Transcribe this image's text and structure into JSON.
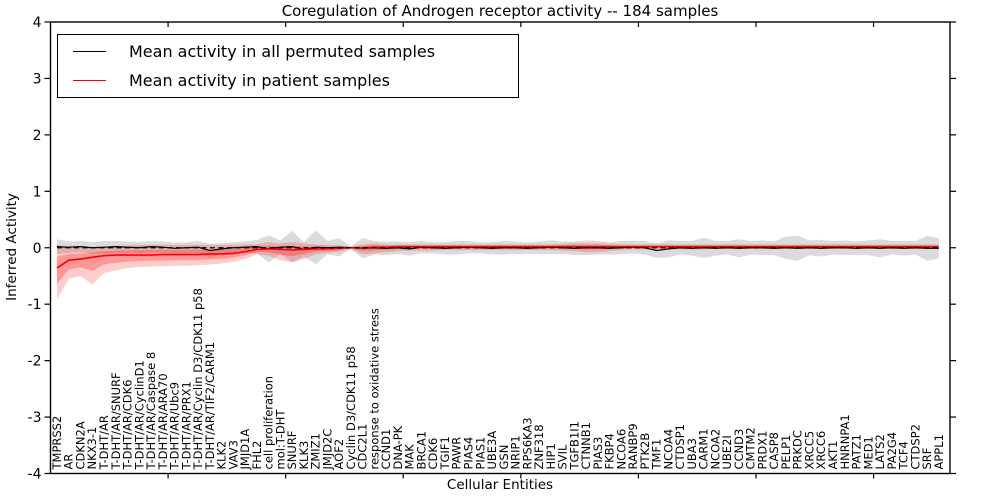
{
  "chart_data": {
    "type": "line",
    "title": "Coregulation of Androgen receptor activity -- 184 samples",
    "xlabel": "Cellular Entities",
    "ylabel": "Inferred Activity",
    "ylim": [
      -4,
      4
    ],
    "yticks": [
      "4",
      "3",
      "2",
      "1",
      "0",
      "-1",
      "-2",
      "-3",
      "-4"
    ],
    "grid": false,
    "legend_position": "upper left",
    "categories": [
      "TMPRSS2",
      "AR",
      "CDKN2A",
      "NKX3-1",
      "T-DHT/AR",
      "T-DHT/AR/SNURF",
      "T-DHT/AR/CDK6",
      "T-DHT/AR/CyclinD1",
      "T-DHT/AR/Caspase 8",
      "T-DHT/AR/ARA70",
      "T-DHT/AR/Ubc9",
      "T-DHT/AR/PRX1",
      "T-DHT/AR/Cyclin D3/CDK11 p58",
      "T-DHT/AR/TIF2/CARM1",
      "KLK2",
      "VAV3",
      "JMJD1A",
      "FHL2",
      "cell proliferation",
      "mol:T-DHT",
      "SNURF",
      "KLK3",
      "ZMIZ1",
      "JMJD2C",
      "AOF2",
      "Cyclin D3/CDK11 p58",
      "CDC2L1",
      "response to oxidative stress",
      "CCND1",
      "DNA-PK",
      "MAK",
      "BRCA1",
      "CDK6",
      "TGIF1",
      "PAWR",
      "PIAS4",
      "PIAS1",
      "UBE3A",
      "GSN",
      "NRIP1",
      "RPS6KA3",
      "ZNF318",
      "HIP1",
      "SVIL",
      "TGFB1I1",
      "CTNNB1",
      "PIAS3",
      "FKBP4",
      "NCOA6",
      "RANBP9",
      "PTK2B",
      "TMF1",
      "NCOA4",
      "CTDSP1",
      "UBA3",
      "CARM1",
      "NCOA2",
      "UBE2I",
      "CCND3",
      "CMTM2",
      "PRDX1",
      "CASP8",
      "PELP1",
      "PRKDC",
      "XRCC5",
      "XRCC6",
      "AKT1",
      "HNRNPA1",
      "PATZ1",
      "MED1",
      "LATS2",
      "PA2G4",
      "TCF4",
      "CTDSP2",
      "SRF",
      "APPL1"
    ],
    "series": [
      {
        "name": "Mean activity in all permuted samples",
        "color": "#000000",
        "band_color": "#000000",
        "band_opacity": 0.14,
        "values": [
          0.02,
          0.01,
          0.02,
          0.0,
          0.01,
          0.02,
          0.01,
          0.0,
          0.02,
          0.01,
          -0.01,
          0.0,
          0.01,
          -0.05,
          -0.02,
          0.0,
          0.01,
          0.02,
          -0.02,
          0.01,
          0.02,
          -0.03,
          0.01,
          0.0,
          0.01,
          0.0,
          -0.01,
          0.0,
          -0.01,
          0.0,
          -0.02,
          0.01,
          0.0,
          -0.01,
          0.0,
          0.01,
          0.0,
          -0.01,
          0.0,
          0.0,
          -0.01,
          0.0,
          0.01,
          0.0,
          -0.01,
          0.0,
          0.0,
          -0.01,
          0.0,
          0.01,
          0.0,
          -0.05,
          -0.02,
          0.0,
          -0.01,
          0.0,
          -0.01,
          0.0,
          -0.01,
          0.0,
          0.0,
          -0.01,
          0.0,
          -0.01,
          0.0,
          -0.01,
          0.0,
          0.0,
          -0.01,
          0.0,
          -0.01,
          0.0,
          -0.01,
          0.0,
          -0.01,
          -0.01
        ],
        "band_halfwidth": [
          0.13,
          0.1,
          0.1,
          0.1,
          0.11,
          0.1,
          0.1,
          0.1,
          0.1,
          0.1,
          0.1,
          0.1,
          0.11,
          0.12,
          0.1,
          0.1,
          0.1,
          0.12,
          0.24,
          0.12,
          0.28,
          0.13,
          0.3,
          0.12,
          0.16,
          0.02,
          0.18,
          0.12,
          0.12,
          0.11,
          0.12,
          0.11,
          0.1,
          0.11,
          0.12,
          0.11,
          0.1,
          0.11,
          0.12,
          0.11,
          0.1,
          0.11,
          0.12,
          0.11,
          0.12,
          0.13,
          0.12,
          0.11,
          0.12,
          0.11,
          0.12,
          0.13,
          0.15,
          0.12,
          0.13,
          0.18,
          0.13,
          0.12,
          0.16,
          0.12,
          0.13,
          0.12,
          0.2,
          0.22,
          0.13,
          0.15,
          0.12,
          0.13,
          0.12,
          0.13,
          0.16,
          0.12,
          0.13,
          0.12,
          0.22,
          0.18
        ]
      },
      {
        "name": "Mean activity in patient samples",
        "color": "#ff0000",
        "band_color": "#ff0000",
        "band_opacity": 0.2,
        "values": [
          -0.36,
          -0.22,
          -0.2,
          -0.17,
          -0.14,
          -0.13,
          -0.13,
          -0.13,
          -0.13,
          -0.12,
          -0.12,
          -0.12,
          -0.12,
          -0.11,
          -0.11,
          -0.1,
          -0.07,
          -0.03,
          -0.02,
          -0.03,
          -0.04,
          -0.03,
          -0.02,
          -0.02,
          -0.01,
          0.0,
          0.0,
          0.01,
          0.01,
          0.02,
          0.02,
          0.02,
          0.02,
          0.02,
          0.02,
          0.02,
          0.02,
          0.02,
          0.02,
          0.02,
          0.02,
          0.02,
          0.02,
          0.02,
          0.02,
          0.02,
          0.02,
          0.02,
          0.02,
          0.02,
          0.02,
          0.02,
          0.02,
          0.02,
          0.02,
          0.02,
          0.02,
          0.02,
          0.02,
          0.02,
          0.02,
          0.02,
          0.02,
          0.02,
          0.02,
          0.02,
          0.02,
          0.02,
          0.02,
          0.02,
          0.02,
          0.02,
          0.02,
          0.02,
          0.02,
          0.02
        ],
        "band_lo": [
          -0.92,
          -0.55,
          -0.5,
          -0.65,
          -0.45,
          -0.4,
          -0.36,
          -0.34,
          -0.33,
          -0.33,
          -0.32,
          -0.32,
          -0.31,
          -0.3,
          -0.28,
          -0.25,
          -0.2,
          -0.12,
          -0.14,
          -0.22,
          -0.26,
          -0.2,
          -0.12,
          -0.09,
          -0.07,
          -0.02,
          -0.12,
          -0.1,
          -0.08,
          -0.06,
          -0.05,
          -0.05,
          -0.05,
          -0.04,
          -0.04,
          -0.04,
          -0.04,
          -0.04,
          -0.04,
          -0.04,
          -0.04,
          -0.04,
          -0.04,
          -0.05,
          -0.06,
          -0.08,
          -0.08,
          -0.06,
          -0.04,
          -0.03,
          -0.03,
          -0.03,
          -0.03,
          -0.03,
          -0.03,
          -0.03,
          -0.02,
          -0.02,
          -0.02,
          -0.02,
          -0.02,
          -0.02,
          -0.02,
          -0.02,
          -0.02,
          -0.02,
          -0.02,
          -0.02,
          -0.02,
          -0.02,
          -0.02,
          -0.02,
          -0.02,
          -0.02,
          -0.02,
          -0.02
        ],
        "band_hi": [
          0.05,
          0.0,
          -0.01,
          0.01,
          0.02,
          0.03,
          0.04,
          0.05,
          0.05,
          0.05,
          0.05,
          0.05,
          0.05,
          0.05,
          0.05,
          0.05,
          0.06,
          0.06,
          0.1,
          0.08,
          0.1,
          0.08,
          0.06,
          0.05,
          0.04,
          0.02,
          0.06,
          0.08,
          0.06,
          0.06,
          0.06,
          0.06,
          0.06,
          0.06,
          0.06,
          0.06,
          0.06,
          0.06,
          0.06,
          0.06,
          0.06,
          0.06,
          0.06,
          0.07,
          0.08,
          0.08,
          0.08,
          0.07,
          0.06,
          0.06,
          0.06,
          0.06,
          0.06,
          0.06,
          0.06,
          0.06,
          0.06,
          0.06,
          0.06,
          0.06,
          0.06,
          0.06,
          0.06,
          0.06,
          0.06,
          0.06,
          0.06,
          0.06,
          0.06,
          0.06,
          0.06,
          0.06,
          0.06,
          0.06,
          0.06,
          0.06
        ]
      }
    ],
    "reference_line": {
      "value": 0,
      "style": "dashed",
      "color": "#000000"
    }
  },
  "legend": {
    "items": [
      {
        "label": "Mean activity in all permuted samples",
        "color": "#000000"
      },
      {
        "label": "Mean activity in patient samples",
        "color": "#ff0000"
      }
    ]
  }
}
